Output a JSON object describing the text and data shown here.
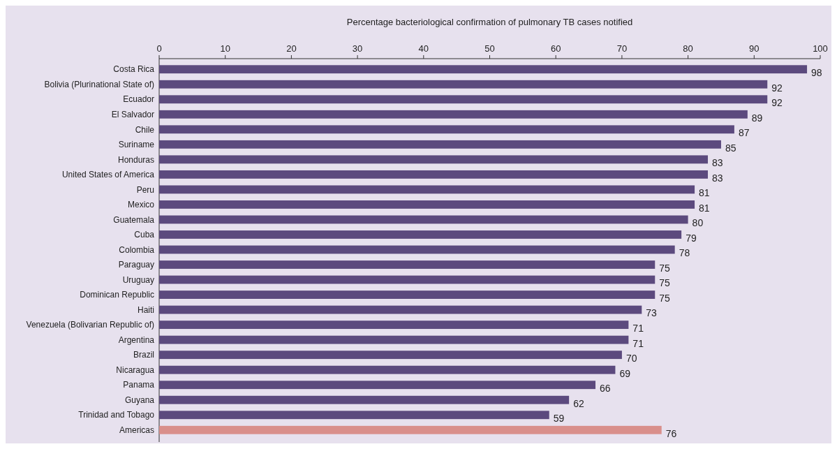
{
  "chart_data": {
    "type": "bar",
    "orientation": "horizontal",
    "xlabel": "Percentage bacteriological confirmation of pulmonary TB cases notified",
    "categories": [
      "Costa Rica",
      "Bolivia (Plurinational State of)",
      "Ecuador",
      "El Salvador",
      "Chile",
      "Suriname",
      "Honduras",
      "United States of America",
      "Peru",
      "Mexico",
      "Guatemala",
      "Cuba",
      "Colombia",
      "Paraguay",
      "Uruguay",
      "Dominican Republic",
      "Haiti",
      "Venezuela (Bolivarian Republic of)",
      "Argentina",
      "Brazil",
      "Nicaragua",
      "Panama",
      "Guyana",
      "Trinidad and Tobago",
      "Americas"
    ],
    "values": [
      98,
      92,
      92,
      89,
      87,
      85,
      83,
      83,
      81,
      81,
      80,
      79,
      78,
      75,
      75,
      75,
      73,
      71,
      71,
      70,
      69,
      66,
      62,
      59,
      76
    ],
    "colors": [
      "#5c4a7e",
      "#5c4a7e",
      "#5c4a7e",
      "#5c4a7e",
      "#5c4a7e",
      "#5c4a7e",
      "#5c4a7e",
      "#5c4a7e",
      "#5c4a7e",
      "#5c4a7e",
      "#5c4a7e",
      "#5c4a7e",
      "#5c4a7e",
      "#5c4a7e",
      "#5c4a7e",
      "#5c4a7e",
      "#5c4a7e",
      "#5c4a7e",
      "#5c4a7e",
      "#5c4a7e",
      "#5c4a7e",
      "#5c4a7e",
      "#5c4a7e",
      "#5c4a7e",
      "#d98f8b"
    ],
    "xlim": [
      0,
      100
    ],
    "xticks": [
      0,
      10,
      20,
      30,
      40,
      50,
      60,
      70,
      80,
      90,
      100
    ],
    "data_labels": true,
    "grid": false
  }
}
